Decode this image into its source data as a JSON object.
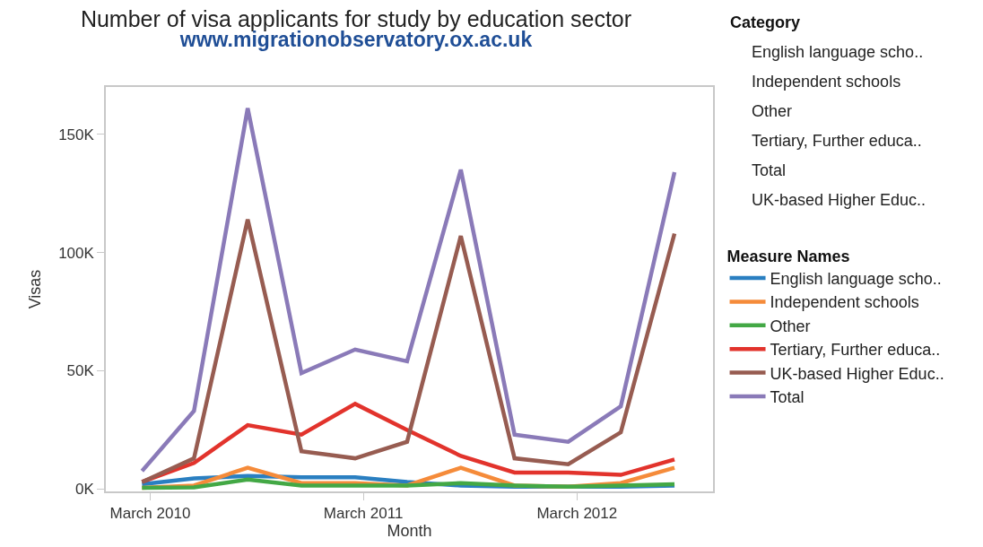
{
  "chart_data": {
    "type": "line",
    "title": "Number of visa applicants for study by education sector",
    "subtitle": "www.migrationobservatory.ox.ac.uk",
    "xlabel": "Month",
    "ylabel": "Visas",
    "legend_title": "Measure Names",
    "x": [
      "2010-02-15",
      "2010-05-15",
      "2010-08-15",
      "2010-11-15",
      "2011-02-15",
      "2011-05-15",
      "2011-08-15",
      "2011-11-15",
      "2012-02-15",
      "2012-05-15",
      "2012-08-15"
    ],
    "series": [
      {
        "name": "English language scho..",
        "color": "#2a7fc1",
        "values": [
          2000,
          4500,
          5500,
          5000,
          5000,
          3000,
          1500,
          1000,
          1000,
          1000,
          1500
        ]
      },
      {
        "name": "Independent schools",
        "color": "#f58b3a",
        "values": [
          500,
          1500,
          9000,
          2500,
          2500,
          1500,
          9000,
          1500,
          1000,
          2500,
          9000
        ]
      },
      {
        "name": "Other",
        "color": "#43a845",
        "values": [
          500,
          700,
          4000,
          1500,
          1500,
          1500,
          2500,
          1500,
          1000,
          1500,
          2000
        ]
      },
      {
        "name": "Tertiary, Further educa..",
        "color": "#e2332c",
        "values": [
          3000,
          11000,
          27000,
          23000,
          36000,
          25000,
          14000,
          7000,
          7000,
          6000,
          12500
        ]
      },
      {
        "name": "UK-based Higher Educ..",
        "color": "#975c51",
        "values": [
          3000,
          13000,
          114000,
          16000,
          13000,
          20000,
          107000,
          13000,
          10500,
          24000,
          108000
        ]
      },
      {
        "name": "Total",
        "color": "#8a7ab8",
        "values": [
          7600,
          33000,
          161000,
          49000,
          59000,
          54000,
          135000,
          23000,
          20000,
          35000,
          134000
        ]
      }
    ],
    "xlim": [
      "2009-12-15",
      "2012-10-20"
    ],
    "xticks": [
      {
        "value": "2010-03-01",
        "label": "March 2010"
      },
      {
        "value": "2011-03-01",
        "label": "March 2011"
      },
      {
        "value": "2012-03-01",
        "label": "March 2012"
      }
    ],
    "ylim": [
      -1000,
      170000
    ],
    "yticks": [
      {
        "value": 0,
        "label": "0K"
      },
      {
        "value": 50000,
        "label": "50K"
      },
      {
        "value": 100000,
        "label": "100K"
      },
      {
        "value": 150000,
        "label": "150K"
      }
    ],
    "legend": "right",
    "line_style": "solid",
    "marker": "none",
    "annotations": [
      "Category",
      "English language scho..",
      "Independent schools",
      "Other",
      "Tertiary, Further educa..",
      "Total",
      "UK-based Higher Educ.."
    ]
  }
}
